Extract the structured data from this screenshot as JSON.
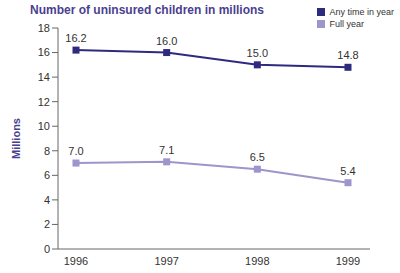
{
  "chart_data": {
    "type": "line",
    "title": "Number of uninsured children in millions",
    "y_label": "Millions",
    "categories": [
      "1996",
      "1997",
      "1998",
      "1999"
    ],
    "series": [
      {
        "name": "Any time in year",
        "color": "#2e2a7f",
        "marker": "square",
        "values": [
          16.2,
          16.0,
          15.0,
          14.8
        ],
        "value_labels": [
          "16.2",
          "16.0",
          "15.0",
          "14.8"
        ]
      },
      {
        "name": "Full year",
        "color": "#9d95cc",
        "marker": "square",
        "values": [
          7.0,
          7.1,
          6.5,
          5.4
        ],
        "value_labels": [
          "7.0",
          "7.1",
          "6.5",
          "5.4"
        ]
      }
    ],
    "ylim": [
      0,
      18
    ],
    "yticks": [
      0,
      2,
      4,
      6,
      8,
      10,
      12,
      14,
      16,
      18
    ],
    "grid": false,
    "data_labels": true,
    "legend": "top-right"
  }
}
